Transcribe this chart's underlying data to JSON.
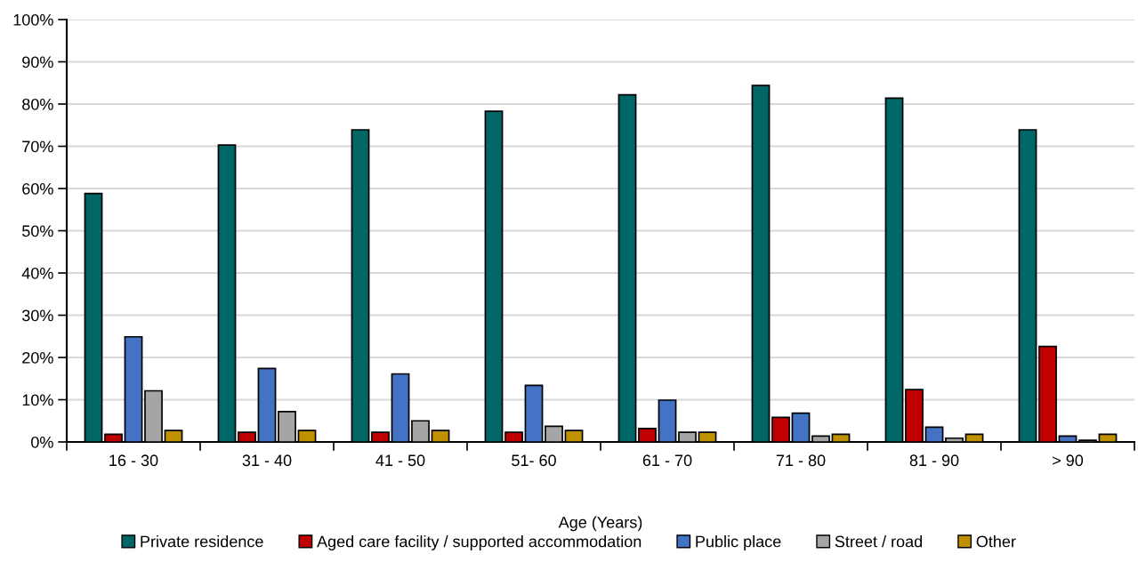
{
  "chart_data": {
    "type": "bar",
    "xlabel": "Age (Years)",
    "categories": [
      "16 - 30",
      "31 - 40",
      "41 - 50",
      "51- 60",
      "61 - 70",
      "71 - 80",
      "81 - 90",
      "> 90"
    ],
    "series": [
      {
        "name": "Private residence",
        "color": "#006666",
        "values": [
          58.8,
          70.3,
          73.9,
          78.3,
          82.2,
          84.4,
          81.4,
          73.9
        ]
      },
      {
        "name": "Aged care facility / supported accommodation",
        "color": "#c00000",
        "values": [
          1.8,
          2.3,
          2.3,
          2.3,
          3.2,
          5.8,
          12.4,
          22.6
        ]
      },
      {
        "name": "Public place",
        "color": "#4472c4",
        "values": [
          24.9,
          17.4,
          16.1,
          13.4,
          9.9,
          6.8,
          3.5,
          1.4
        ]
      },
      {
        "name": "Street / road",
        "color": "#a5a5a5",
        "values": [
          12.1,
          7.2,
          5.0,
          3.7,
          2.3,
          1.4,
          0.9,
          0.4
        ]
      },
      {
        "name": "Other",
        "color": "#bf9000",
        "values": [
          2.7,
          2.7,
          2.7,
          2.7,
          2.3,
          1.8,
          1.8,
          1.8
        ]
      }
    ],
    "ylim": [
      0,
      100
    ],
    "yticks": [
      {
        "value": 0,
        "label": "0%"
      },
      {
        "value": 10,
        "label": "10%"
      },
      {
        "value": 20,
        "label": "20%"
      },
      {
        "value": 30,
        "label": "30%"
      },
      {
        "value": 40,
        "label": "40%"
      },
      {
        "value": 50,
        "label": "50%"
      },
      {
        "value": 60,
        "label": "60%"
      },
      {
        "value": 70,
        "label": "70%"
      },
      {
        "value": 80,
        "label": "80%"
      },
      {
        "value": 90,
        "label": "90%"
      },
      {
        "value": 100,
        "label": "100%"
      }
    ],
    "grid": "y",
    "legend": "bottom"
  }
}
